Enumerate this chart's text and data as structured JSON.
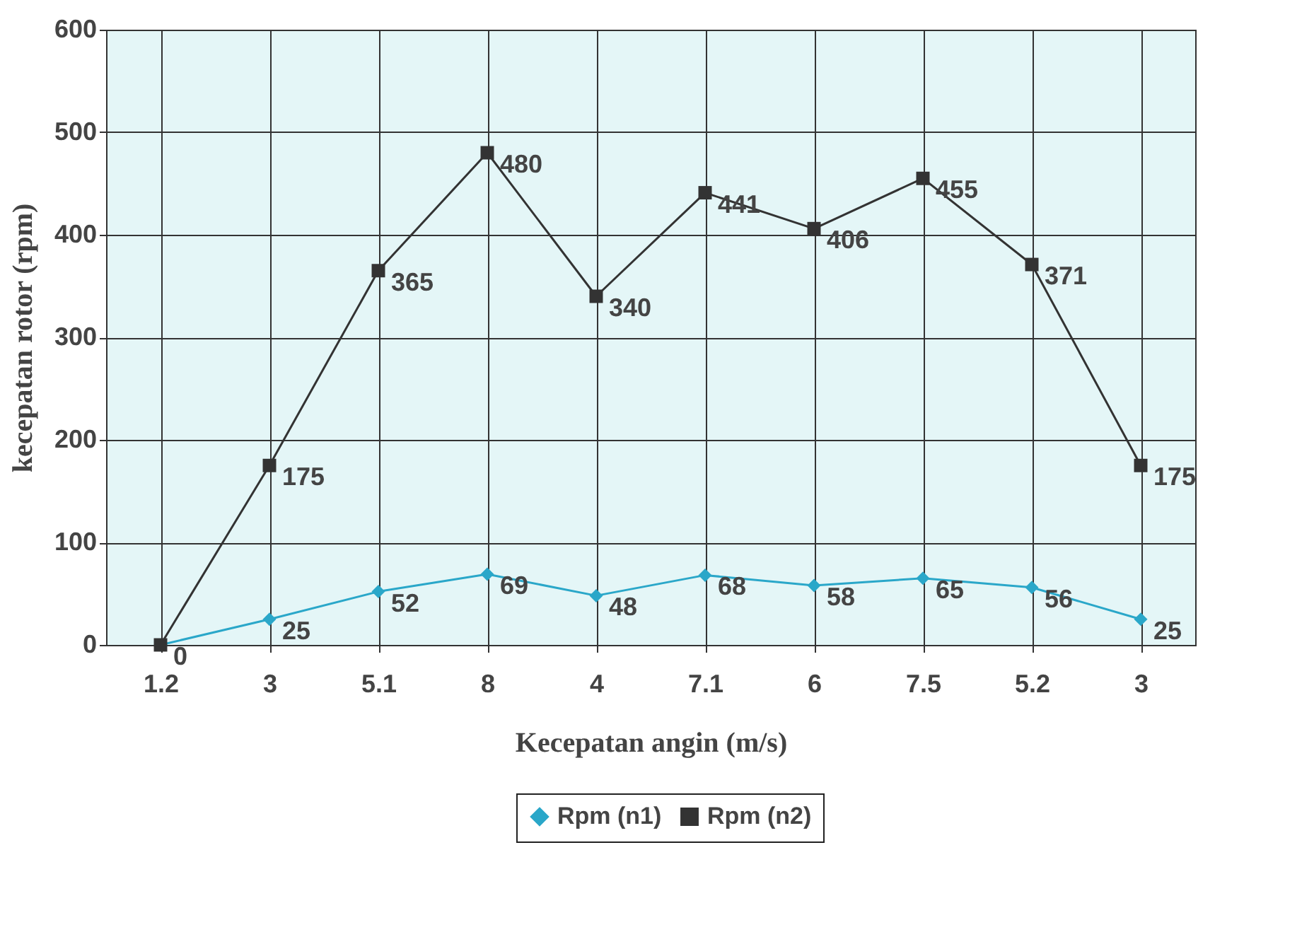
{
  "chart_data": {
    "type": "line",
    "xlabel": "Kecepatan angin (m/s)",
    "ylabel": "kecepatan rotor (rpm)",
    "categories": [
      "1.2",
      "3",
      "5.1",
      "8",
      "4",
      "7.1",
      "6",
      "7.5",
      "5.2",
      "3"
    ],
    "series": [
      {
        "name": "Rpm (n1)",
        "color": "#2aa7c9",
        "marker": "diamond",
        "values": [
          0,
          25,
          52,
          69,
          48,
          68,
          58,
          65,
          56,
          25
        ],
        "value_labels": [
          null,
          "25",
          "52",
          "69",
          "48",
          "68",
          "58",
          "65",
          "56",
          "25"
        ]
      },
      {
        "name": "Rpm (n2)",
        "color": "#333333",
        "marker": "square",
        "values": [
          0,
          175,
          365,
          480,
          340,
          441,
          406,
          455,
          371,
          175
        ],
        "value_labels": [
          "0",
          "175",
          "365",
          "480",
          "340",
          "441",
          "406",
          "455",
          "371",
          "175"
        ]
      }
    ],
    "ylim": [
      0,
      600
    ],
    "yticks": [
      0,
      100,
      200,
      300,
      400,
      500,
      600
    ],
    "grid": true,
    "legend": "bottom"
  }
}
